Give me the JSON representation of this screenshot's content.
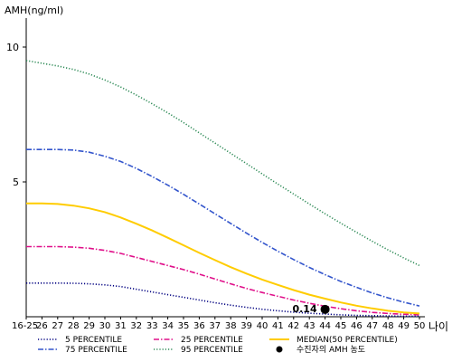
{
  "chart_data": {
    "type": "line",
    "ylabel": "AMH(ng/ml)",
    "xlabel": "나이",
    "categories": [
      "16-25",
      "26",
      "27",
      "28",
      "29",
      "30",
      "31",
      "32",
      "33",
      "34",
      "35",
      "36",
      "37",
      "38",
      "39",
      "40",
      "41",
      "42",
      "43",
      "44",
      "45",
      "46",
      "47",
      "48",
      "49",
      "50"
    ],
    "yticks": [
      5,
      10
    ],
    "ylim": [
      0,
      11
    ],
    "series": [
      {
        "name": "5 PERCENTILE",
        "color": "#000080",
        "dash": "dotted",
        "values": [
          1.25,
          1.25,
          1.25,
          1.24,
          1.22,
          1.18,
          1.12,
          1.02,
          0.92,
          0.82,
          0.72,
          0.62,
          0.52,
          0.43,
          0.35,
          0.28,
          0.22,
          0.17,
          0.13,
          0.1,
          0.07,
          0.05,
          0.04,
          0.03,
          0.02,
          0.02
        ]
      },
      {
        "name": "25 PERCENTILE",
        "color": "#e0108a",
        "dash": "dashdot",
        "values": [
          2.6,
          2.6,
          2.6,
          2.58,
          2.54,
          2.46,
          2.35,
          2.2,
          2.05,
          1.9,
          1.75,
          1.58,
          1.4,
          1.22,
          1.05,
          0.9,
          0.76,
          0.62,
          0.5,
          0.39,
          0.3,
          0.22,
          0.16,
          0.12,
          0.09,
          0.07
        ]
      },
      {
        "name": "MEDIAN(50 PERCENTILE)",
        "color": "#ffcc00",
        "dash": "solid",
        "values": [
          4.2,
          4.2,
          4.18,
          4.12,
          4.02,
          3.88,
          3.68,
          3.45,
          3.2,
          2.93,
          2.65,
          2.37,
          2.1,
          1.84,
          1.6,
          1.38,
          1.18,
          0.99,
          0.82,
          0.67,
          0.53,
          0.41,
          0.31,
          0.22,
          0.16,
          0.12
        ]
      },
      {
        "name": "75 PERCENTILE",
        "color": "#3355cc",
        "dash": "dashdot",
        "values": [
          6.2,
          6.2,
          6.2,
          6.18,
          6.1,
          5.95,
          5.76,
          5.5,
          5.2,
          4.88,
          4.54,
          4.18,
          3.82,
          3.46,
          3.1,
          2.76,
          2.43,
          2.12,
          1.83,
          1.56,
          1.31,
          1.09,
          0.88,
          0.7,
          0.54,
          0.4
        ]
      },
      {
        "name": "95 PERCENTILE",
        "color": "#2e8b57",
        "dash": "dotted",
        "values": [
          9.5,
          9.4,
          9.3,
          9.17,
          9.0,
          8.78,
          8.52,
          8.22,
          7.9,
          7.56,
          7.2,
          6.82,
          6.44,
          6.06,
          5.68,
          5.3,
          4.92,
          4.55,
          4.18,
          3.82,
          3.47,
          3.13,
          2.8,
          2.48,
          2.18,
          1.9
        ]
      }
    ],
    "patient": {
      "name": "수진자의 AMH 농도",
      "category": "44",
      "value": 0.14,
      "label": "0.14",
      "color": "#000000"
    },
    "legend": {
      "placement": "bottom",
      "order": [
        "5 PERCENTILE",
        "25 PERCENTILE",
        "MEDIAN(50 PERCENTILE)",
        "75 PERCENTILE",
        "95 PERCENTILE",
        "수진자의 AMH 농도"
      ]
    }
  }
}
